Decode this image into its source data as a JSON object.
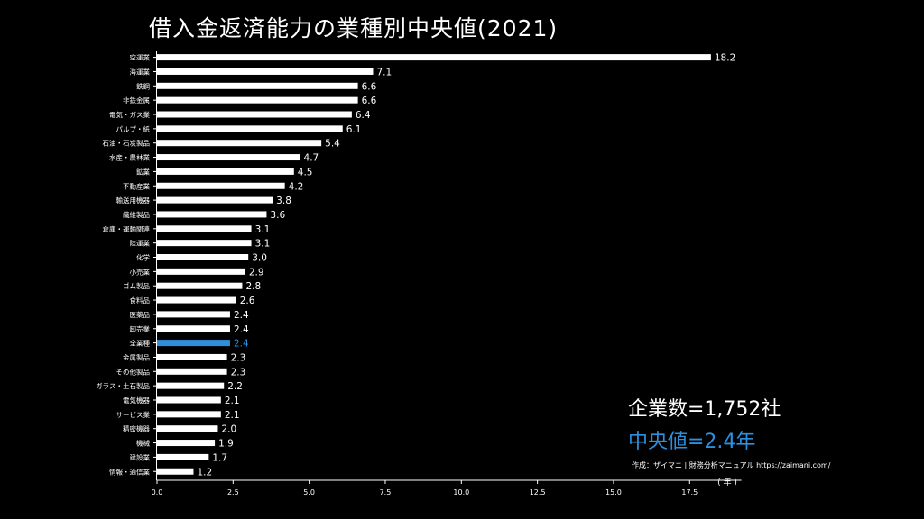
{
  "title": "借入金返済能力の業種別中央値(2021)",
  "summary": {
    "count_text": "企業数=1,752社",
    "median_text": "中央値=2.4年"
  },
  "credit": "作成：ザイマニ | 財務分析マニュアル https://zaimani.com/",
  "colors": {
    "background": "#000000",
    "bar": "#ffffff",
    "highlight": "#2e8fdc",
    "text": "#ffffff"
  },
  "chart_data": {
    "type": "bar",
    "orientation": "horizontal",
    "title": "借入金返済能力の業種別中央値(2021)",
    "xlabel": "",
    "ylabel": "",
    "unit_label": "( 年 )",
    "xlim": [
      0,
      19.2
    ],
    "xticks": [
      "0.0",
      "2.5",
      "5.0",
      "7.5",
      "10.0",
      "12.5",
      "15.0",
      "17.5"
    ],
    "highlight_category": "全業種",
    "categories": [
      "空運業",
      "海運業",
      "鉄鋼",
      "非鉄金属",
      "電気・ガス業",
      "パルプ・紙",
      "石油・石炭製品",
      "水産・農林業",
      "鉱業",
      "不動産業",
      "輸送用機器",
      "繊維製品",
      "倉庫・運輸関連",
      "陸運業",
      "化学",
      "小売業",
      "ゴム製品",
      "食料品",
      "医薬品",
      "卸売業",
      "全業種",
      "金属製品",
      "その他製品",
      "ガラス・土石製品",
      "電気機器",
      "サービス業",
      "精密機器",
      "機械",
      "建設業",
      "情報・通信業"
    ],
    "values": [
      18.2,
      7.1,
      6.6,
      6.6,
      6.4,
      6.1,
      5.4,
      4.7,
      4.5,
      4.2,
      3.8,
      3.6,
      3.1,
      3.1,
      3.0,
      2.9,
      2.8,
      2.6,
      2.4,
      2.4,
      2.4,
      2.3,
      2.3,
      2.2,
      2.1,
      2.1,
      2.0,
      1.9,
      1.7,
      1.2
    ],
    "value_labels": [
      "18.2",
      "7.1",
      "6.6",
      "6.6",
      "6.4",
      "6.1",
      "5.4",
      "4.7",
      "4.5",
      "4.2",
      "3.8",
      "3.6",
      "3.1",
      "3.1",
      "3.0",
      "2.9",
      "2.8",
      "2.6",
      "2.4",
      "2.4",
      "2.4",
      "2.3",
      "2.3",
      "2.2",
      "2.1",
      "2.1",
      "2.0",
      "1.9",
      "1.7",
      "1.2"
    ]
  }
}
